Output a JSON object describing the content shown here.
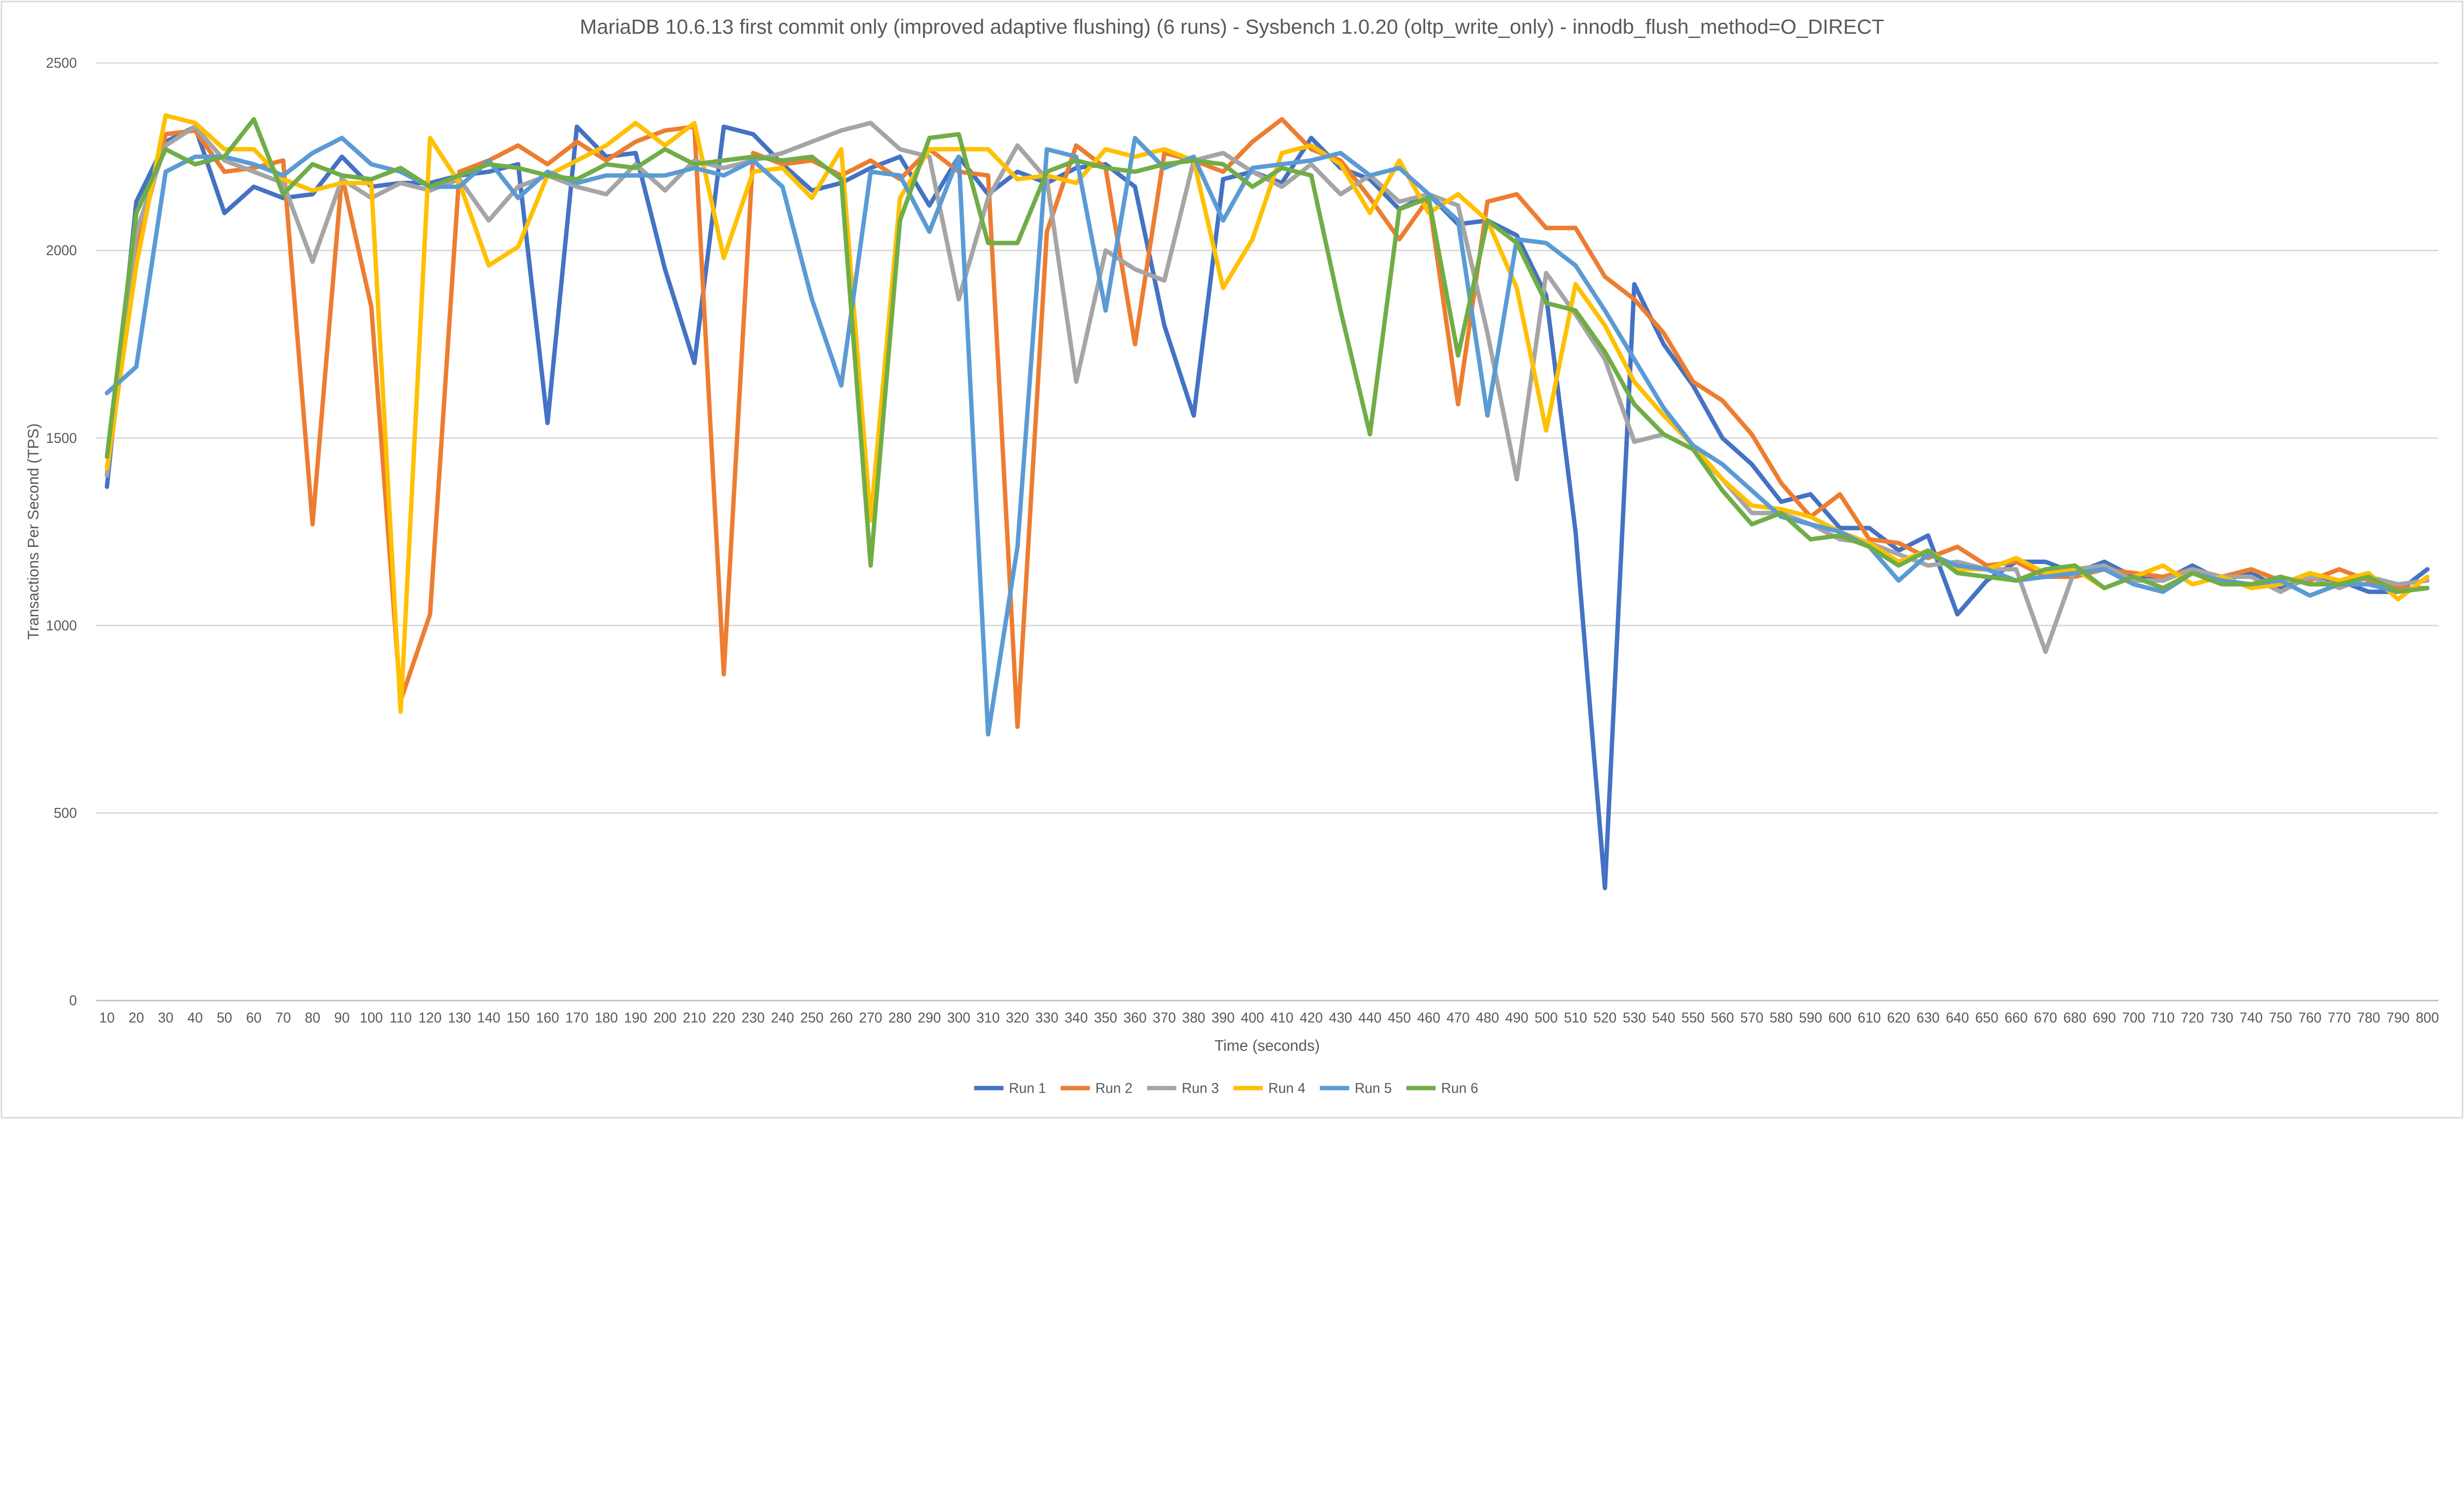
{
  "chart_data": {
    "type": "line",
    "title": "MariaDB 10.6.13 first commit only (improved adaptive flushing) (6 runs) - Sysbench 1.0.20 (oltp_write_only) - innodb_flush_method=O_DIRECT",
    "xlabel": "Time (seconds)",
    "ylabel": "Transactions Per Second (TPS)",
    "ylim": [
      0,
      2500
    ],
    "yticks": [
      "0",
      "500",
      "1000",
      "1500",
      "2000",
      "2500"
    ],
    "grid": true,
    "legend": "bottom",
    "x": [
      10,
      20,
      30,
      40,
      50,
      60,
      70,
      80,
      90,
      100,
      110,
      120,
      130,
      140,
      150,
      160,
      170,
      180,
      190,
      200,
      210,
      220,
      230,
      240,
      250,
      260,
      270,
      280,
      290,
      300,
      310,
      320,
      330,
      340,
      350,
      360,
      370,
      380,
      390,
      400,
      410,
      420,
      430,
      440,
      450,
      460,
      470,
      480,
      490,
      500,
      510,
      520,
      530,
      540,
      550,
      560,
      570,
      580,
      590,
      600,
      610,
      620,
      630,
      640,
      650,
      660,
      670,
      680,
      690,
      700,
      710,
      720,
      730,
      740,
      750,
      760,
      770,
      780,
      790,
      800
    ],
    "series": [
      {
        "name": "Run 1",
        "color": "#4472C4",
        "values": [
          1370,
          2130,
          2290,
          2330,
          2100,
          2170,
          2140,
          2150,
          2250,
          2170,
          2180,
          2180,
          2200,
          2210,
          2230,
          1540,
          2330,
          2250,
          2260,
          1950,
          1700,
          2330,
          2310,
          2230,
          2160,
          2180,
          2220,
          2250,
          2120,
          2250,
          2150,
          2210,
          2180,
          2220,
          2230,
          2170,
          1800,
          1560,
          2190,
          2210,
          2180,
          2300,
          2220,
          2190,
          2110,
          2150,
          2070,
          2080,
          2040,
          1880,
          1250,
          300,
          1910,
          1750,
          1640,
          1500,
          1430,
          1330,
          1350,
          1260,
          1260,
          1200,
          1240,
          1030,
          1120,
          1170,
          1170,
          1140,
          1170,
          1130,
          1120,
          1160,
          1120,
          1140,
          1100,
          1130,
          1120,
          1090,
          1090,
          1150
        ]
      },
      {
        "name": "Run 2",
        "color": "#ED7D31",
        "values": [
          1400,
          2000,
          2310,
          2320,
          2210,
          2220,
          2240,
          1270,
          2200,
          1850,
          800,
          1030,
          2210,
          2240,
          2280,
          2230,
          2290,
          2240,
          2290,
          2320,
          2330,
          870,
          2260,
          2230,
          2240,
          2200,
          2240,
          2190,
          2270,
          2210,
          2200,
          730,
          2050,
          2280,
          2220,
          1750,
          2260,
          2240,
          2210,
          2290,
          2350,
          2270,
          2240,
          2140,
          2030,
          2140,
          1590,
          2130,
          2150,
          2060,
          2060,
          1930,
          1870,
          1780,
          1650,
          1600,
          1510,
          1380,
          1290,
          1350,
          1230,
          1220,
          1180,
          1210,
          1160,
          1170,
          1130,
          1130,
          1150,
          1140,
          1130,
          1150,
          1130,
          1150,
          1120,
          1120,
          1150,
          1120,
          1100,
          1100
        ]
      },
      {
        "name": "Run 3",
        "color": "#A5A5A5",
        "values": [
          1400,
          2050,
          2280,
          2330,
          2240,
          2210,
          2180,
          1970,
          2190,
          2140,
          2180,
          2160,
          2190,
          2080,
          2170,
          2200,
          2170,
          2150,
          2230,
          2160,
          2240,
          2220,
          2240,
          2260,
          2290,
          2320,
          2340,
          2270,
          2250,
          1870,
          2140,
          2280,
          2190,
          1650,
          2000,
          1950,
          1920,
          2240,
          2260,
          2210,
          2170,
          2230,
          2150,
          2200,
          2130,
          2150,
          2120,
          1780,
          1390,
          1940,
          1830,
          1710,
          1490,
          1510,
          1470,
          1390,
          1300,
          1300,
          1270,
          1230,
          1220,
          1190,
          1160,
          1170,
          1150,
          1150,
          930,
          1150,
          1160,
          1120,
          1120,
          1150,
          1130,
          1130,
          1090,
          1130,
          1100,
          1130,
          1110,
          1120
        ]
      },
      {
        "name": "Run 4",
        "color": "#FFC000",
        "values": [
          1420,
          1960,
          2360,
          2340,
          2270,
          2270,
          2190,
          2160,
          2180,
          2180,
          770,
          2300,
          2180,
          1960,
          2010,
          2200,
          2240,
          2280,
          2340,
          2280,
          2340,
          1980,
          2210,
          2220,
          2140,
          2270,
          1280,
          2140,
          2270,
          2270,
          2270,
          2190,
          2200,
          2180,
          2270,
          2250,
          2270,
          2240,
          1900,
          2030,
          2260,
          2280,
          2230,
          2100,
          2240,
          2100,
          2150,
          2080,
          1900,
          1520,
          1910,
          1800,
          1650,
          1560,
          1480,
          1390,
          1320,
          1310,
          1290,
          1250,
          1220,
          1170,
          1200,
          1150,
          1150,
          1180,
          1140,
          1150,
          1100,
          1130,
          1160,
          1110,
          1130,
          1100,
          1110,
          1140,
          1120,
          1140,
          1070,
          1130
        ]
      },
      {
        "name": "Run 5",
        "color": "#5B9BD5",
        "values": [
          1620,
          1690,
          2210,
          2250,
          2250,
          2230,
          2200,
          2260,
          2300,
          2230,
          2210,
          2170,
          2170,
          2240,
          2140,
          2210,
          2180,
          2200,
          2200,
          2200,
          2220,
          2200,
          2240,
          2170,
          1870,
          1640,
          2210,
          2200,
          2050,
          2250,
          710,
          1210,
          2270,
          2250,
          1840,
          2300,
          2220,
          2250,
          2080,
          2220,
          2230,
          2240,
          2260,
          2200,
          2220,
          2150,
          2080,
          1560,
          2030,
          2020,
          1960,
          1840,
          1710,
          1580,
          1480,
          1430,
          1360,
          1290,
          1270,
          1250,
          1210,
          1120,
          1190,
          1160,
          1150,
          1120,
          1130,
          1140,
          1150,
          1110,
          1090,
          1140,
          1120,
          1110,
          1120,
          1080,
          1110,
          1110,
          1090,
          1100
        ]
      },
      {
        "name": "Run 6",
        "color": "#70AD47",
        "values": [
          1450,
          2100,
          2270,
          2230,
          2250,
          2350,
          2150,
          2230,
          2200,
          2190,
          2220,
          2170,
          2200,
          2230,
          2220,
          2200,
          2190,
          2230,
          2220,
          2270,
          2230,
          2240,
          2250,
          2240,
          2250,
          2190,
          1160,
          2080,
          2300,
          2310,
          2020,
          2020,
          2210,
          2240,
          2220,
          2210,
          2230,
          2240,
          2230,
          2170,
          2220,
          2200,
          1840,
          1510,
          2110,
          2140,
          1720,
          2080,
          2020,
          1860,
          1840,
          1730,
          1590,
          1510,
          1470,
          1360,
          1270,
          1300,
          1230,
          1240,
          1210,
          1160,
          1200,
          1140,
          1130,
          1120,
          1150,
          1160,
          1100,
          1130,
          1100,
          1140,
          1110,
          1110,
          1130,
          1110,
          1110,
          1130,
          1090,
          1100
        ]
      }
    ]
  }
}
